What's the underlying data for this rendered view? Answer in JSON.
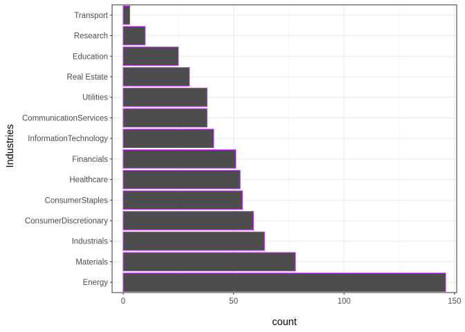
{
  "chart_data": {
    "type": "bar",
    "orientation": "horizontal",
    "xlabel": "count",
    "ylabel": "Industries",
    "xlim": [
      -5,
      151
    ],
    "xticks": [
      0,
      50,
      100,
      150
    ],
    "xtick_labels": [
      "0",
      "50",
      "100",
      "150"
    ],
    "grid": true,
    "legend": "none",
    "categories": [
      "Transport",
      "Research",
      "Education",
      "Real Estate",
      "Utilities",
      "CommunicationServices",
      "InformationTechnology",
      "Financials",
      "Healthcare",
      "ConsumerStaples",
      "ConsumerDiscretionary",
      "Industrials",
      "Materials",
      "Energy"
    ],
    "values": [
      3,
      10,
      25,
      30,
      38,
      38,
      41,
      51,
      53,
      54,
      59,
      64,
      78,
      146
    ],
    "colors": {
      "bar_fill": "#4d4d4d",
      "bar_outline": "#cc33ff",
      "grid": "#ebebeb",
      "panel_border": "#333333",
      "text": "#4d4d4d",
      "title_text": "#000000"
    }
  }
}
